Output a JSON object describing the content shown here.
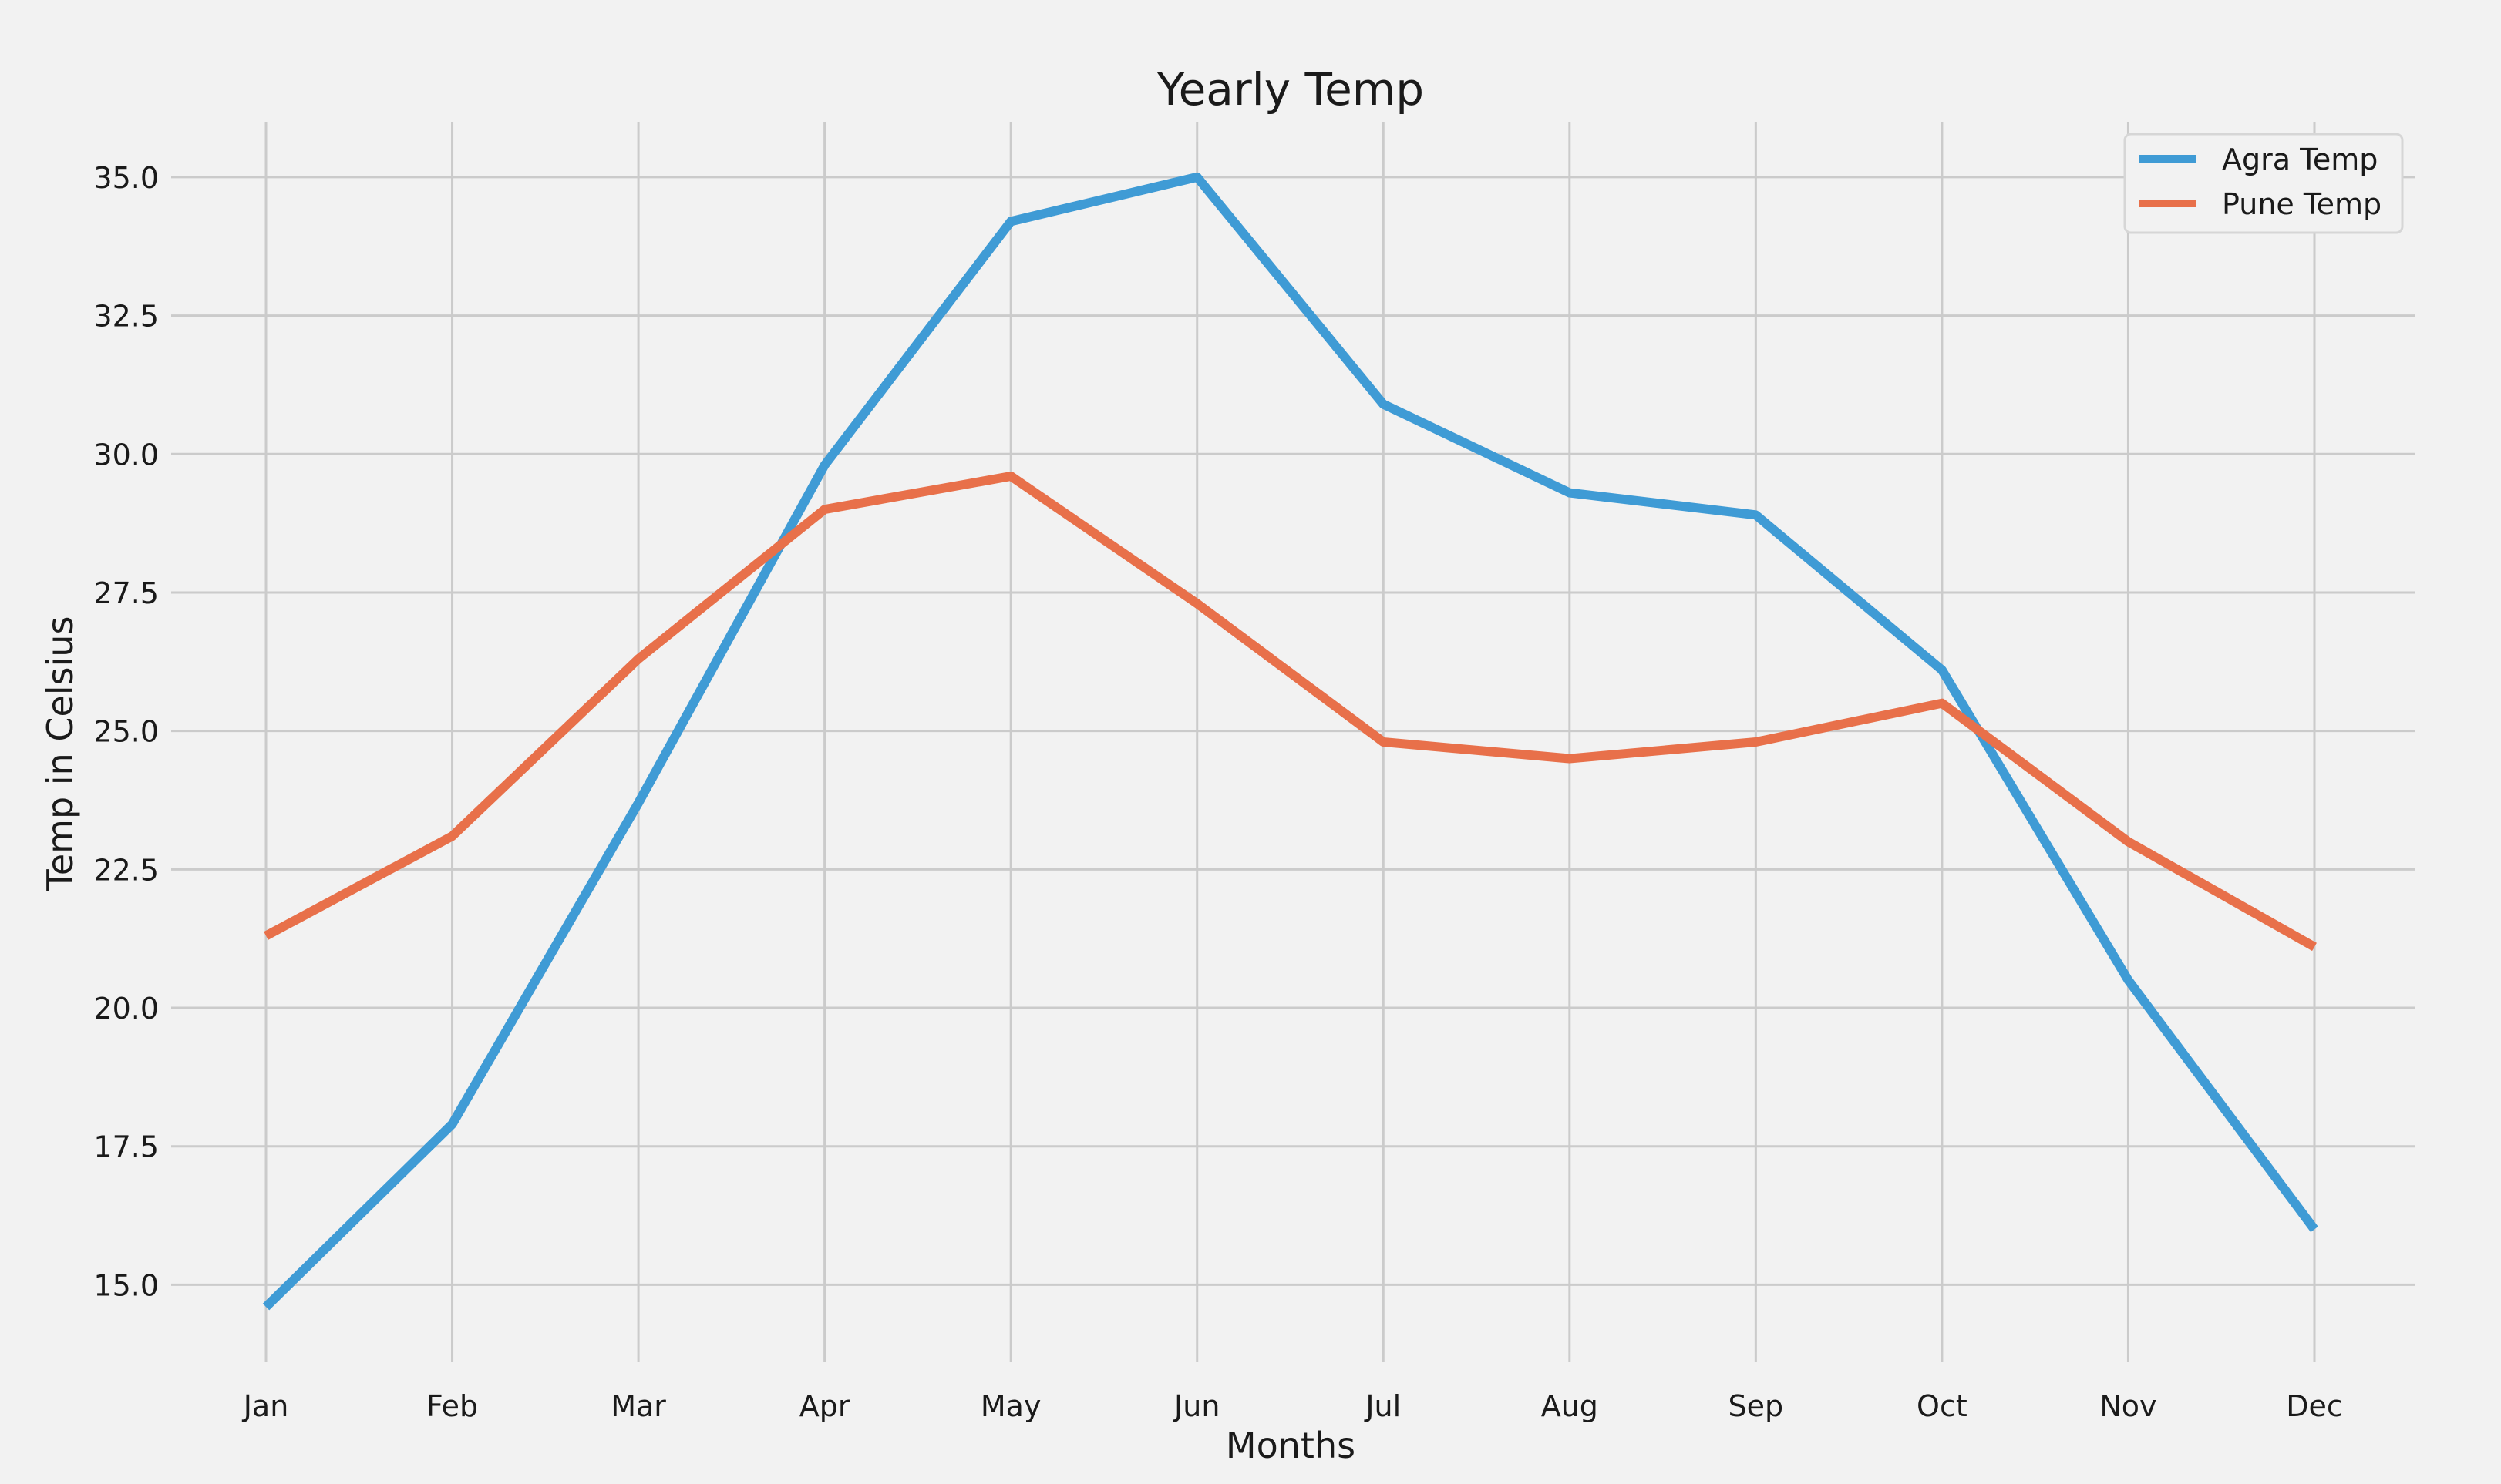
{
  "chart_data": {
    "type": "line",
    "title": "Yearly Temp",
    "xlabel": "Months",
    "ylabel": "Temp in Celsius",
    "categories": [
      "Jan",
      "Feb",
      "Mar",
      "Apr",
      "May",
      "Jun",
      "Jul",
      "Aug",
      "Sep",
      "Oct",
      "Nov",
      "Dec"
    ],
    "ylim": [
      13.6,
      36.0
    ],
    "yticks": [
      15.0,
      17.5,
      20.0,
      22.5,
      25.0,
      27.5,
      30.0,
      32.5,
      35.0
    ],
    "ytick_labels": [
      "15.0",
      "17.5",
      "20.0",
      "22.5",
      "25.0",
      "27.5",
      "30.0",
      "32.5",
      "35.0"
    ],
    "grid": true,
    "legend_position": "top-right",
    "series": [
      {
        "name": "Agra Temp",
        "color": "#3f9bd5",
        "values": [
          14.6,
          17.9,
          23.7,
          29.8,
          34.2,
          35.0,
          30.9,
          29.3,
          28.9,
          26.1,
          20.5,
          16.0
        ]
      },
      {
        "name": "Pune Temp",
        "color": "#e8704a",
        "values": [
          21.3,
          23.1,
          26.3,
          29.0,
          29.6,
          27.3,
          24.8,
          24.5,
          24.8,
          25.5,
          23.0,
          21.1
        ]
      }
    ]
  }
}
